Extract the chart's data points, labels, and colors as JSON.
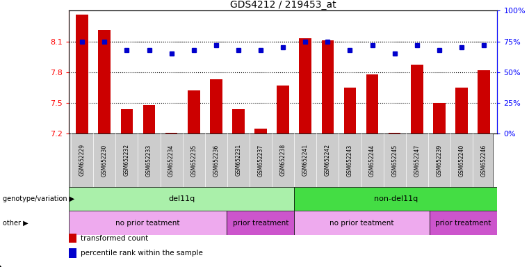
{
  "title": "GDS4212 / 219453_at",
  "samples": [
    "GSM652229",
    "GSM652230",
    "GSM652232",
    "GSM652233",
    "GSM652234",
    "GSM652235",
    "GSM652236",
    "GSM652231",
    "GSM652237",
    "GSM652238",
    "GSM652241",
    "GSM652242",
    "GSM652243",
    "GSM652244",
    "GSM652245",
    "GSM652247",
    "GSM652239",
    "GSM652240",
    "GSM652246"
  ],
  "bar_values": [
    8.36,
    8.21,
    7.44,
    7.48,
    7.21,
    7.62,
    7.73,
    7.44,
    7.25,
    7.67,
    8.13,
    8.11,
    7.65,
    7.78,
    7.21,
    7.87,
    7.5,
    7.65,
    7.82
  ],
  "dot_values": [
    75,
    75,
    68,
    68,
    65,
    68,
    72,
    68,
    68,
    70,
    75,
    75,
    68,
    72,
    65,
    72,
    68,
    70,
    72
  ],
  "ylim_left": [
    7.2,
    8.4
  ],
  "ylim_right": [
    0,
    100
  ],
  "yticks_left": [
    7.2,
    7.5,
    7.8,
    8.1
  ],
  "yticks_right": [
    0,
    25,
    50,
    75,
    100
  ],
  "right_tick_labels": [
    "0%",
    "25%",
    "50%",
    "75%",
    "100%"
  ],
  "bar_color": "#cc0000",
  "dot_color": "#0000cc",
  "hlines": [
    8.1,
    7.8,
    7.5
  ],
  "genotype_groups": [
    {
      "label": "del11q",
      "start": 0,
      "end": 10,
      "color": "#aaf0aa"
    },
    {
      "label": "non-del11q",
      "start": 10,
      "end": 19,
      "color": "#44dd44"
    }
  ],
  "other_groups": [
    {
      "label": "no prior teatment",
      "start": 0,
      "end": 7,
      "color": "#eeaaee"
    },
    {
      "label": "prior treatment",
      "start": 7,
      "end": 10,
      "color": "#cc55cc"
    },
    {
      "label": "no prior teatment",
      "start": 10,
      "end": 16,
      "color": "#eeaaee"
    },
    {
      "label": "prior treatment",
      "start": 16,
      "end": 19,
      "color": "#cc55cc"
    }
  ],
  "legend_items": [
    {
      "label": "transformed count",
      "color": "#cc0000"
    },
    {
      "label": "percentile rank within the sample",
      "color": "#0000cc"
    }
  ],
  "label_genotype": "genotype/variation",
  "label_other": "other",
  "background_color": "#ffffff",
  "tick_area_color": "#cccccc"
}
